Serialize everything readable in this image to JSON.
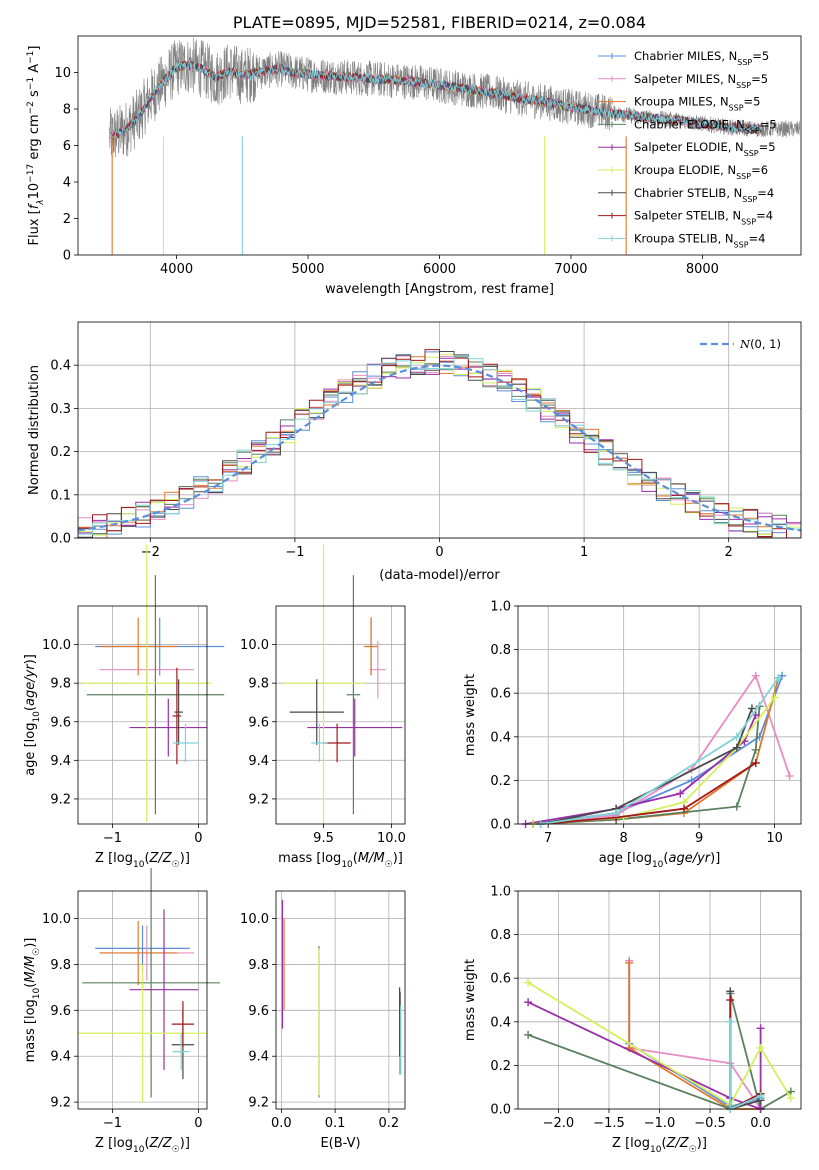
{
  "colors": {
    "chabrier_miles": "#5b8fdc",
    "salpeter_miles": "#e88cc4",
    "kroupa_miles": "#e2782b",
    "chabrier_elodie": "#5b8060",
    "salpeter_elodie": "#9a2fa9",
    "kroupa_elodie": "#d3ef5c",
    "chabrier_stelib": "#4a4a4a",
    "salpeter_stelib": "#a31818",
    "kroupa_stelib": "#7fd4d8",
    "data": "#808080",
    "gaussian": "#5b8fdc"
  },
  "chart_data": [
    {
      "id": "spectrum",
      "type": "line",
      "title": "PLATE=0895, MJD=52581, FIBERID=0214, z=0.084",
      "xlabel": "wavelength [Angstrom, rest frame]",
      "ylabel": "Flux [f_λ 10^-17 erg cm^-2 s^-1 A^-1]",
      "xlim": [
        3250,
        8750
      ],
      "ylim": [
        0,
        12
      ],
      "xticks": [
        4000,
        5000,
        6000,
        7000,
        8000
      ],
      "yticks": [
        0,
        2,
        4,
        6,
        8,
        10
      ],
      "legend_position": "top-right",
      "legend": [
        "Chabrier MILES, N_SSP=5",
        "Salpeter MILES, N_SSP=5",
        "Kroupa MILES, N_SSP=5",
        "Chabrier ELODIE, N_SSP=5",
        "Salpeter ELODIE, N_SSP=5",
        "Kroupa ELODIE, N_SSP=6",
        "Chabrier STELIB, N_SSP=4",
        "Salpeter STELIB, N_SSP=4",
        "Kroupa STELIB, N_SSP=4"
      ],
      "data_curve": {
        "x": [
          3500,
          3600,
          3700,
          3800,
          3900,
          4000,
          4100,
          4200,
          4300,
          4400,
          4500,
          4600,
          4700,
          4800,
          4900,
          5000,
          5200,
          5400,
          5600,
          5800,
          6000,
          6200,
          6400,
          6600,
          6800,
          7000,
          7200,
          7400,
          7600,
          7800,
          8000,
          8200,
          8400
        ],
        "y": [
          6.5,
          6.8,
          7.5,
          8.6,
          9.5,
          10.3,
          10.4,
          10.2,
          9.7,
          10.1,
          9.8,
          10.0,
          10.1,
          10.2,
          10.0,
          9.9,
          9.8,
          9.7,
          9.6,
          9.5,
          9.3,
          9.1,
          8.9,
          8.6,
          8.4,
          8.1,
          7.9,
          7.7,
          7.5,
          7.4,
          7.2,
          7.0,
          6.9
        ]
      }
    },
    {
      "id": "residuals",
      "type": "histogram",
      "xlabel": "(data-model)/error",
      "ylabel": "Normed distribution",
      "xlim": [
        -2.5,
        2.5
      ],
      "ylim": [
        0,
        0.5
      ],
      "xticks": [
        -2,
        -1,
        0,
        1,
        2
      ],
      "yticks": [
        0.0,
        0.1,
        0.2,
        0.3,
        0.4
      ],
      "grid": true,
      "legend_position": "top-right",
      "legend": [
        "N(0,1)"
      ]
    },
    {
      "id": "age_vs_z",
      "type": "errorbar",
      "xlabel": "Z [log10(Z/Z☉)]",
      "ylabel": "age  [log10(age/yr)]",
      "xlim": [
        -1.4,
        0.1
      ],
      "ylim": [
        9.07,
        10.2
      ],
      "xticks": [
        -1,
        0
      ],
      "yticks": [
        9.2,
        9.4,
        9.6,
        9.8,
        10.0
      ],
      "grid": true,
      "points": [
        {
          "c": "chabrier_miles",
          "x": -0.45,
          "xerr": 0.75,
          "y": 9.99,
          "yerr": 0.15
        },
        {
          "c": "salpeter_miles",
          "x": -0.6,
          "xerr": 0.55,
          "y": 9.87,
          "yerr": 0.15
        },
        {
          "c": "kroupa_miles",
          "x": -0.7,
          "xerr": 0.45,
          "y": 9.99,
          "yerr": 0.15
        },
        {
          "c": "chabrier_elodie",
          "x": -0.5,
          "xerr": 0.8,
          "y": 9.74,
          "yerr": 0.62
        },
        {
          "c": "salpeter_elodie",
          "x": -0.35,
          "xerr": 0.45,
          "y": 9.57,
          "yerr": 0.15
        },
        {
          "c": "kroupa_elodie",
          "x": -0.6,
          "xerr": 0.75,
          "y": 9.8,
          "yerr": 0.72
        },
        {
          "c": "chabrier_stelib",
          "x": -0.23,
          "xerr": 0.05,
          "y": 9.65,
          "yerr": 0.17
        },
        {
          "c": "salpeter_stelib",
          "x": -0.25,
          "xerr": 0.05,
          "y": 9.63,
          "yerr": 0.25
        },
        {
          "c": "kroupa_stelib",
          "x": -0.15,
          "xerr": 0.15,
          "y": 9.49,
          "yerr": 0.1
        }
      ]
    },
    {
      "id": "age_vs_mass",
      "type": "errorbar",
      "xlabel": "mass [log10(M/M☉)]",
      "ylabel": "",
      "xlim": [
        9.15,
        10.1
      ],
      "ylim": [
        9.07,
        10.2
      ],
      "xticks": [
        9.5,
        10.0
      ],
      "yticks": [
        9.2,
        9.4,
        9.6,
        9.8,
        10.0
      ],
      "grid": true,
      "points": [
        {
          "c": "chabrier_miles",
          "x": 9.85,
          "xerr": 0.05,
          "y": 9.99,
          "yerr": 0.15
        },
        {
          "c": "salpeter_miles",
          "x": 9.9,
          "xerr": 0.06,
          "y": 9.87,
          "yerr": 0.15
        },
        {
          "c": "kroupa_miles",
          "x": 9.85,
          "xerr": 0.05,
          "y": 9.99,
          "yerr": 0.15
        },
        {
          "c": "chabrier_elodie",
          "x": 9.72,
          "xerr": 0.05,
          "y": 9.74,
          "yerr": 0.62
        },
        {
          "c": "salpeter_elodie",
          "x": 9.73,
          "xerr": 0.35,
          "y": 9.57,
          "yerr": 0.15
        },
        {
          "c": "kroupa_elodie",
          "x": 9.5,
          "xerr": 0.3,
          "y": 9.8,
          "yerr": 0.72
        },
        {
          "c": "chabrier_stelib",
          "x": 9.45,
          "xerr": 0.2,
          "y": 9.65,
          "yerr": 0.17
        },
        {
          "c": "salpeter_stelib",
          "x": 9.6,
          "xerr": 0.1,
          "y": 9.49,
          "yerr": 0.1
        },
        {
          "c": "kroupa_stelib",
          "x": 9.47,
          "xerr": 0.06,
          "y": 9.49,
          "yerr": 0.1
        }
      ]
    },
    {
      "id": "weight_vs_age",
      "type": "line",
      "xlabel": "age  [log10(age/yr)]",
      "ylabel": "mass weight",
      "xlim": [
        6.6,
        10.35
      ],
      "ylim": [
        0,
        1
      ],
      "xticks": [
        7,
        8,
        9,
        10
      ],
      "yticks": [
        0.0,
        0.2,
        0.4,
        0.6,
        0.8,
        1.0
      ],
      "grid": true,
      "series": [
        {
          "c": "chabrier_miles",
          "x": [
            6.8,
            7.9,
            8.9,
            9.8,
            10.1
          ],
          "y": [
            0.0,
            0.05,
            0.2,
            0.4,
            0.68
          ]
        },
        {
          "c": "salpeter_miles",
          "x": [
            6.8,
            7.9,
            8.9,
            9.75,
            10.2
          ],
          "y": [
            0.0,
            0.04,
            0.25,
            0.68,
            0.22
          ]
        },
        {
          "c": "kroupa_miles",
          "x": [
            6.8,
            7.9,
            8.8,
            9.75,
            10.05
          ],
          "y": [
            0.0,
            0.02,
            0.05,
            0.28,
            0.67
          ]
        },
        {
          "c": "chabrier_elodie",
          "x": [
            6.8,
            7.9,
            9.5,
            9.75,
            9.8
          ],
          "y": [
            0.0,
            0.02,
            0.08,
            0.34,
            0.54
          ]
        },
        {
          "c": "salpeter_elodie",
          "x": [
            6.7,
            7.9,
            8.75,
            9.6,
            9.75
          ],
          "y": [
            0.0,
            0.07,
            0.14,
            0.38,
            0.5
          ]
        },
        {
          "c": "kroupa_elodie",
          "x": [
            6.8,
            8.0,
            8.8,
            9.5,
            10.0
          ],
          "y": [
            0.0,
            0.03,
            0.1,
            0.35,
            0.58
          ]
        },
        {
          "c": "chabrier_stelib",
          "x": [
            6.9,
            7.9,
            9.5,
            9.7
          ],
          "y": [
            0.0,
            0.07,
            0.35,
            0.53
          ]
        },
        {
          "c": "salpeter_stelib",
          "x": [
            6.9,
            7.9,
            8.8,
            9.75
          ],
          "y": [
            0.0,
            0.03,
            0.07,
            0.28
          ]
        },
        {
          "c": "kroupa_stelib",
          "x": [
            6.9,
            7.9,
            9.5,
            10.05
          ],
          "y": [
            0.0,
            0.05,
            0.4,
            0.67
          ]
        }
      ]
    },
    {
      "id": "mass_vs_z",
      "type": "errorbar",
      "xlabel": "Z [log10(Z/Z☉)]",
      "ylabel": "mass [log10(M/M☉)]",
      "xlim": [
        -1.4,
        0.1
      ],
      "ylim": [
        9.17,
        10.12
      ],
      "xticks": [
        -1,
        0
      ],
      "yticks": [
        9.2,
        9.4,
        9.6,
        9.8,
        10.0
      ],
      "grid": true,
      "points": [
        {
          "c": "chabrier_miles",
          "x": -0.65,
          "xerr": 0.55,
          "y": 9.87,
          "yerr": 0.1
        },
        {
          "c": "salpeter_miles",
          "x": -0.6,
          "xerr": 0.55,
          "y": 9.85,
          "yerr": 0.12
        },
        {
          "c": "kroupa_miles",
          "x": -0.7,
          "xerr": 0.45,
          "y": 9.85,
          "yerr": 0.14
        },
        {
          "c": "chabrier_elodie",
          "x": -0.55,
          "xerr": 0.8,
          "y": 9.72,
          "yerr": 0.5
        },
        {
          "c": "salpeter_elodie",
          "x": -0.4,
          "xerr": 0.4,
          "y": 9.69,
          "yerr": 0.35
        },
        {
          "c": "kroupa_elodie",
          "x": -0.65,
          "xerr": 0.75,
          "y": 9.5,
          "yerr": 0.3
        },
        {
          "c": "chabrier_stelib",
          "x": -0.18,
          "xerr": 0.13,
          "y": 9.45,
          "yerr": 0.15
        },
        {
          "c": "salpeter_stelib",
          "x": -0.18,
          "xerr": 0.13,
          "y": 9.54,
          "yerr": 0.1
        },
        {
          "c": "kroupa_stelib",
          "x": -0.2,
          "xerr": 0.1,
          "y": 9.42,
          "yerr": 0.08
        }
      ]
    },
    {
      "id": "mass_vs_ebv",
      "type": "errorbar",
      "xlabel": "E(B-V)",
      "ylabel": "",
      "xlim": [
        -0.01,
        0.23
      ],
      "ylim": [
        9.17,
        10.12
      ],
      "xticks": [
        0.0,
        0.1,
        0.2
      ],
      "yticks": [
        9.2,
        9.4,
        9.6,
        9.8,
        10.0
      ],
      "grid": true,
      "points": [
        {
          "c": "salpeter_elodie",
          "x": 0.002,
          "xerr": 0,
          "y": 9.8,
          "yerr": 0.28
        },
        {
          "c": "kroupa_miles",
          "x": 0.005,
          "xerr": 0,
          "y": 9.8,
          "yerr": 0.2
        },
        {
          "c": "chabrier_elodie",
          "x": 0.07,
          "xerr": 0,
          "y": 9.55,
          "yerr": 0.33
        },
        {
          "c": "kroupa_elodie",
          "x": 0.07,
          "xerr": 0,
          "y": 9.55,
          "yerr": 0.32
        },
        {
          "c": "salpeter_stelib",
          "x": 0.22,
          "xerr": 0,
          "y": 9.55,
          "yerr": 0.15
        },
        {
          "c": "chabrier_stelib",
          "x": 0.221,
          "xerr": 0,
          "y": 9.5,
          "yerr": 0.18
        },
        {
          "c": "kroupa_stelib",
          "x": 0.222,
          "xerr": 0,
          "y": 9.47,
          "yerr": 0.15
        }
      ]
    },
    {
      "id": "weight_vs_z",
      "type": "line",
      "xlabel": "Z [log10(Z/Z☉)]",
      "ylabel": "mass weight",
      "xlim": [
        -2.4,
        0.4
      ],
      "ylim": [
        0,
        1
      ],
      "xticks": [
        -2.0,
        -1.5,
        -1.0,
        -0.5,
        0.0
      ],
      "yticks": [
        0.0,
        0.2,
        0.4,
        0.6,
        0.8,
        1.0
      ],
      "grid": true,
      "series": [
        {
          "c": "chabrier_miles",
          "x": [
            -1.3,
            -1.3,
            -0.3,
            0.0
          ],
          "y": [
            0.68,
            0.3,
            0.01,
            0.05
          ]
        },
        {
          "c": "salpeter_miles",
          "x": [
            -1.3,
            -1.3,
            -0.3,
            0.0
          ],
          "y": [
            0.68,
            0.28,
            0.21,
            0.0
          ]
        },
        {
          "c": "kroupa_miles",
          "x": [
            -1.3,
            -1.3,
            -0.3,
            0.0
          ],
          "y": [
            0.67,
            0.28,
            0.0,
            0.0
          ]
        },
        {
          "c": "chabrier_elodie",
          "x": [
            -2.3,
            -0.3,
            -0.3,
            0.0,
            0.3
          ],
          "y": [
            0.34,
            0.0,
            0.53,
            0.0,
            0.08
          ]
        },
        {
          "c": "salpeter_elodie",
          "x": [
            -2.3,
            -0.3,
            0.0,
            0.0
          ],
          "y": [
            0.49,
            0.05,
            0.0,
            0.37
          ]
        },
        {
          "c": "kroupa_elodie",
          "x": [
            -2.3,
            -0.3,
            0.0,
            0.3
          ],
          "y": [
            0.58,
            0.02,
            0.28,
            0.05
          ]
        },
        {
          "c": "chabrier_stelib",
          "x": [
            -0.3,
            -0.3,
            0.0
          ],
          "y": [
            0.54,
            0.0,
            0.04
          ]
        },
        {
          "c": "salpeter_stelib",
          "x": [
            -0.3,
            -0.3,
            0.0
          ],
          "y": [
            0.5,
            0.0,
            0.07
          ]
        },
        {
          "c": "kroupa_stelib",
          "x": [
            -0.3,
            -0.3,
            0.0
          ],
          "y": [
            0.4,
            0.0,
            0.06
          ]
        }
      ]
    }
  ]
}
